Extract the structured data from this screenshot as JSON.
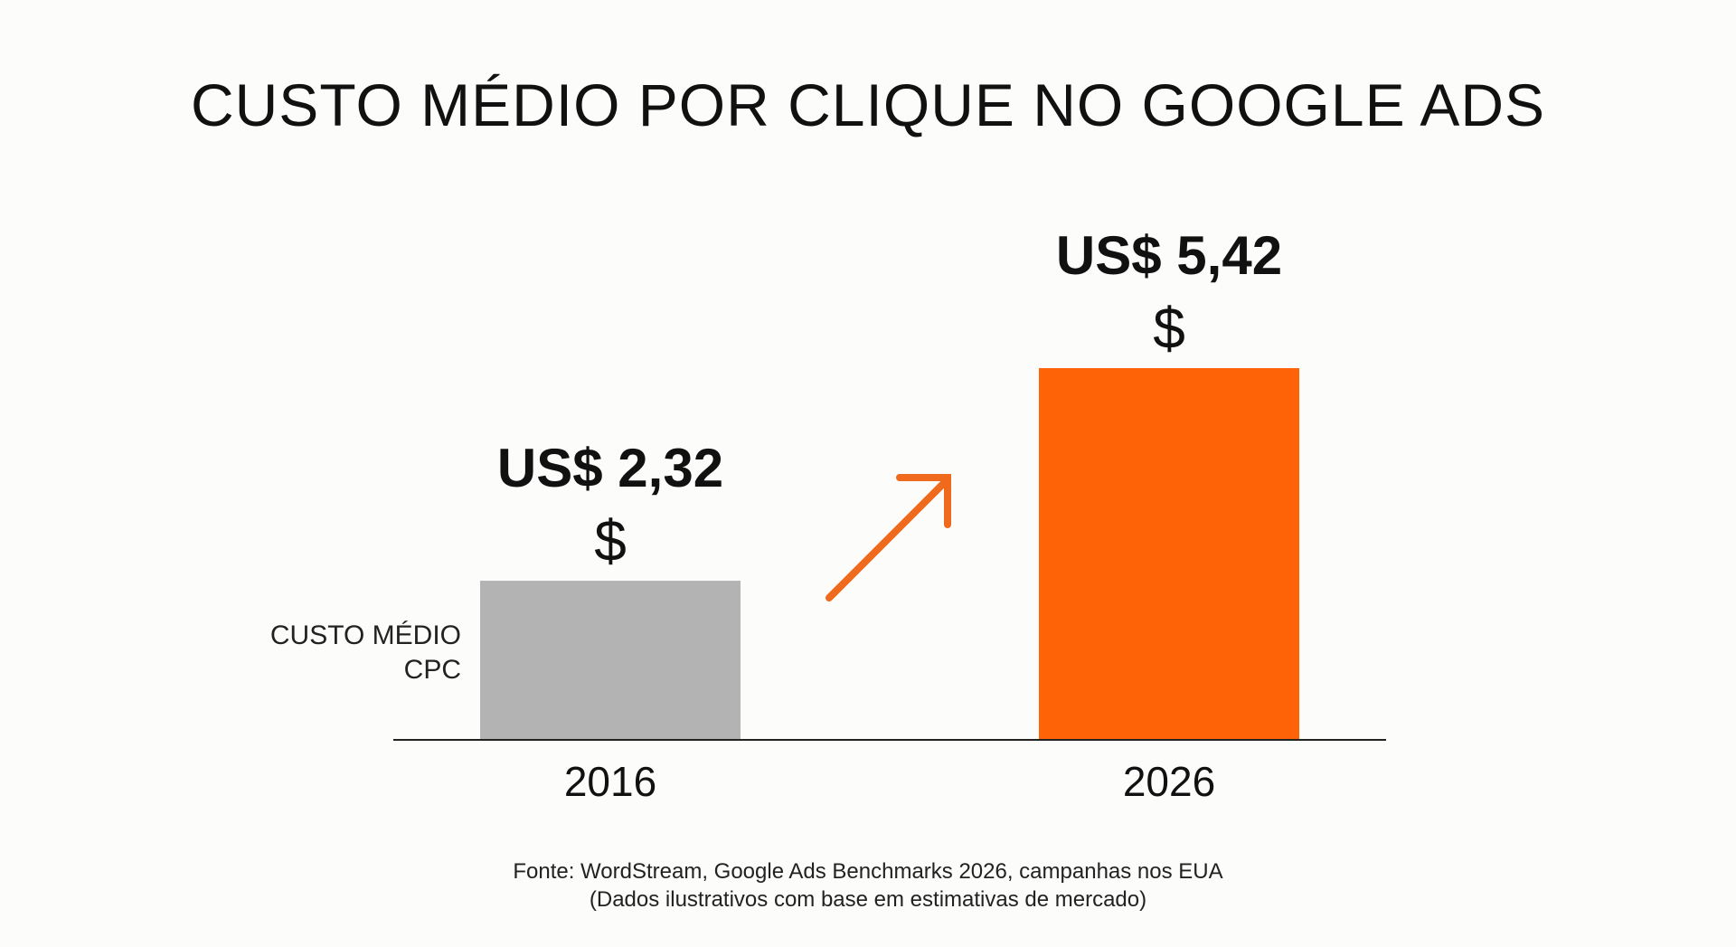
{
  "title": "CUSTO MÉDIO POR CLIQUE NO GOOGLE ADS",
  "y_axis_label_lines": [
    "CUSTO MÉDIO",
    "CPC"
  ],
  "source": "Fonte: WordStream, Google Ads Benchmarks 2026, campanhas nos EUA",
  "note": "(Dados ilustrativos com base em estimativas de mercado)",
  "trend_icon": "arrow-up-right-icon",
  "colors": {
    "bar_2016": "#b3b3b3",
    "bar_2026": "#ff6308",
    "arrow": "#f06a1e",
    "axis": "#222222"
  },
  "chart_data": {
    "type": "bar",
    "categories": [
      "2016",
      "2026"
    ],
    "values": [
      2.32,
      5.42
    ],
    "data_labels": [
      "US$ 2,32",
      "US$ 5,42"
    ],
    "data_label_icon": "$",
    "title": "CUSTO MÉDIO POR CLIQUE NO GOOGLE ADS",
    "xlabel": "",
    "ylabel": "CUSTO MÉDIO CPC",
    "ylim": [
      0,
      5.42
    ],
    "grid": false,
    "legend": "none"
  }
}
